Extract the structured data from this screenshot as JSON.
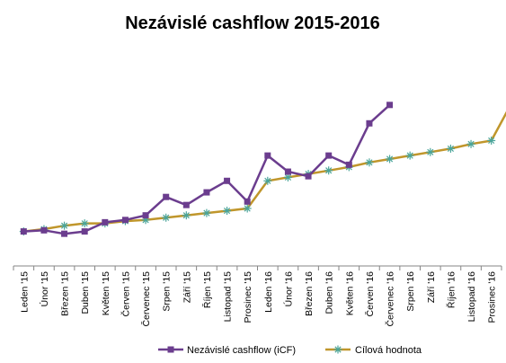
{
  "chart_data": {
    "type": "line",
    "title": "Nezávislé cashflow 2015-2016",
    "xlabel": "",
    "ylabel": "",
    "y_axis_visible": false,
    "grid": false,
    "legend_position": "bottom",
    "categories": [
      "Leden '15",
      "Únor '15",
      "Březen '15",
      "Duben '15",
      "Květen '15",
      "Červen '15",
      "Červenec '15",
      "Srpen '15",
      "Září '15",
      "Říjen '15",
      "Listopad '15",
      "Prosinec '15",
      "Leden '16",
      "Únor '16",
      "Březen '16",
      "Duben '16",
      "Květen '16",
      "Červen '16",
      "Červenec '16",
      "Srpen '16",
      "Září '16",
      "Říjen '16",
      "Listopad '16",
      "Prosinec '16"
    ],
    "ylim": [
      0,
      100
    ],
    "series": [
      {
        "name": "Nezávislé cashflow (iCF)",
        "color": "#6b3d8e",
        "marker": "square",
        "values": [
          15,
          15.5,
          14,
          15,
          19,
          20,
          22,
          30,
          26.5,
          32,
          37,
          28,
          48,
          41,
          39,
          48,
          44,
          62,
          70,
          null,
          null,
          null,
          null,
          null
        ]
      },
      {
        "name": "Cílová hodnota",
        "color": "#c0962b",
        "marker_color": "#4aa59a",
        "marker": "star",
        "values": [
          15,
          16,
          17.5,
          18.5,
          18.5,
          19.5,
          20,
          21,
          22,
          23,
          24,
          25,
          37,
          38.5,
          40,
          41.5,
          43,
          45,
          46.5,
          48,
          49.5,
          51,
          53,
          54.5
        ],
        "extends_to_value": 67
      }
    ]
  }
}
